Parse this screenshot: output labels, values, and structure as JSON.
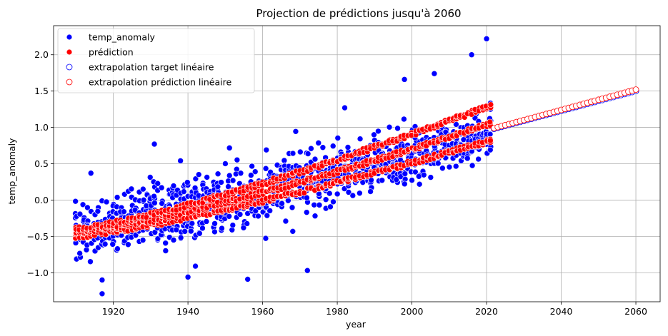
{
  "chart_data": {
    "type": "scatter",
    "title": "Projection de prédictions jusqu'à 2060",
    "xlabel": "year",
    "ylabel": "temp_anomaly",
    "xlim": [
      1904,
      2066.5
    ],
    "ylim": [
      -1.4,
      2.4
    ],
    "xticks": [
      1920,
      1940,
      1960,
      1980,
      2000,
      2020,
      2040,
      2060
    ],
    "yticks": [
      -1.0,
      -0.5,
      0.0,
      0.5,
      1.0,
      1.5,
      2.0
    ],
    "ytick_labels": [
      "−1.0",
      "−0.5",
      "0.0",
      "0.5",
      "1.0",
      "1.5",
      "2.0"
    ],
    "grid": true,
    "legend_position": "top-left",
    "series": [
      {
        "name": "temp_anomaly",
        "style": "filled",
        "color": "#0000ff",
        "x_range": [
          1910,
          2021
        ],
        "trend_start": -0.45,
        "trend_slope": 0.0118,
        "sample_points": [
          {
            "x": 1917,
            "y": -1.29
          },
          {
            "x": 1917,
            "y": -1.1
          },
          {
            "x": 1914,
            "y": 0.37
          },
          {
            "x": 1931,
            "y": 0.77
          },
          {
            "x": 1938,
            "y": 0.54
          },
          {
            "x": 1940,
            "y": -1.06
          },
          {
            "x": 1942,
            "y": -0.91
          },
          {
            "x": 1956,
            "y": -1.09
          },
          {
            "x": 1961,
            "y": 0.69
          },
          {
            "x": 1972,
            "y": -0.97
          },
          {
            "x": 1982,
            "y": 1.27
          },
          {
            "x": 1998,
            "y": 1.66
          },
          {
            "x": 2006,
            "y": 1.74
          },
          {
            "x": 2016,
            "y": 2.0
          },
          {
            "x": 2020,
            "y": 2.22
          },
          {
            "x": 2021,
            "y": 0.69
          }
        ]
      },
      {
        "name": "prédiction",
        "style": "filled",
        "color": "#ff0000",
        "x_range": [
          1910,
          2021
        ],
        "bands": [
          {
            "start": -0.5,
            "end": 0.82
          },
          {
            "start": -0.45,
            "end": 1.05
          },
          {
            "start": -0.4,
            "end": 1.3
          }
        ]
      },
      {
        "name": "extrapolation target linéaire",
        "style": "hollow",
        "color": "#0000ff",
        "x_range": [
          2022,
          2060
        ],
        "y_range": [
          0.98,
          1.5
        ]
      },
      {
        "name": "extrapolation prédiction linéaire",
        "style": "hollow",
        "color": "#ff0000",
        "x_range": [
          2022,
          2060
        ],
        "y_range": [
          0.99,
          1.52
        ]
      }
    ]
  }
}
